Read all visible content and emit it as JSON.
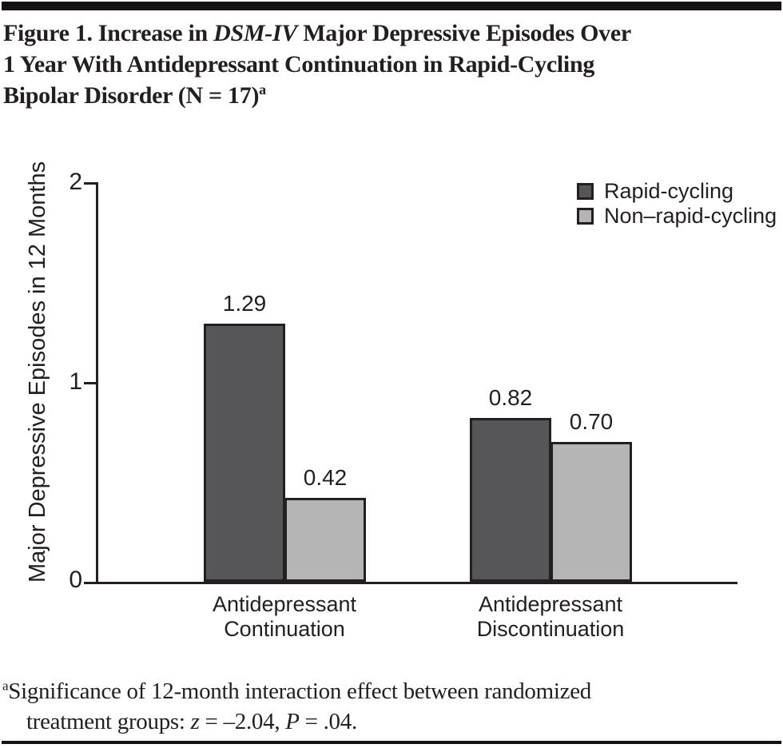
{
  "figure": {
    "title": {
      "line1a": "Figure 1. Increase in ",
      "line1_italic": "DSM-IV",
      "line1b": " Major Depressive Episodes Over",
      "line2": "1 Year With Antidepressant Continuation in Rapid-Cycling",
      "line3": "Bipolar Disorder (N = 17)",
      "note_marker": "a"
    },
    "footnote": {
      "marker": "a",
      "line1": "Significance of 12-month interaction effect between randomized",
      "line2_pre": "treatment groups: ",
      "stat1_var": "z",
      "stat1_rest": " = –2.04, ",
      "stat2_var": "P",
      "stat2_rest": " = .04."
    }
  },
  "chart_data": {
    "type": "bar",
    "title": "",
    "xlabel": "",
    "ylabel": "Major Depressive Episodes in 12 Months",
    "ylim": [
      0,
      2
    ],
    "yticks": [
      "2",
      "1",
      "0"
    ],
    "grid": false,
    "legend_position": "top-right",
    "categories": [
      "Antidepressant Continuation",
      "Antidepressant Discontinuation"
    ],
    "xaxis_labels": [
      [
        "Antidepressant",
        "Continuation"
      ],
      [
        "Antidepressant",
        "Discontinuation"
      ]
    ],
    "series": [
      {
        "name": "Rapid-cycling",
        "values": [
          1.29,
          0.82
        ],
        "labels": [
          "1.29",
          "0.82"
        ],
        "color": "#565658"
      },
      {
        "name": "Non–rapid-cycling",
        "values": [
          0.42,
          0.7
        ],
        "labels": [
          "0.42",
          "0.70"
        ],
        "color": "#b5b5b6"
      }
    ]
  }
}
